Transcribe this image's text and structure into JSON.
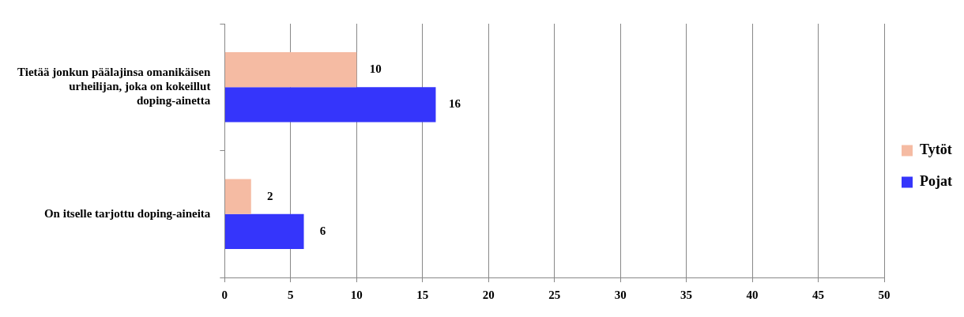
{
  "chart_data": {
    "type": "bar",
    "orientation": "horizontal",
    "categories": [
      "Tietää jonkun päälajinsa omanikäisen urheilijan, joka on kokeillut doping-ainetta",
      "On itselle tarjottu doping-aineita"
    ],
    "series": [
      {
        "name": "Tytöt",
        "color": "#f5bba3",
        "values": [
          10,
          2
        ]
      },
      {
        "name": "Pojat",
        "color": "#3535fb",
        "values": [
          16,
          6
        ]
      }
    ],
    "xlim": [
      0,
      50
    ],
    "xticks": [
      0,
      5,
      10,
      15,
      20,
      25,
      30,
      35,
      40,
      45,
      50
    ],
    "grid": "x",
    "legend": "right",
    "data_labels": true
  }
}
